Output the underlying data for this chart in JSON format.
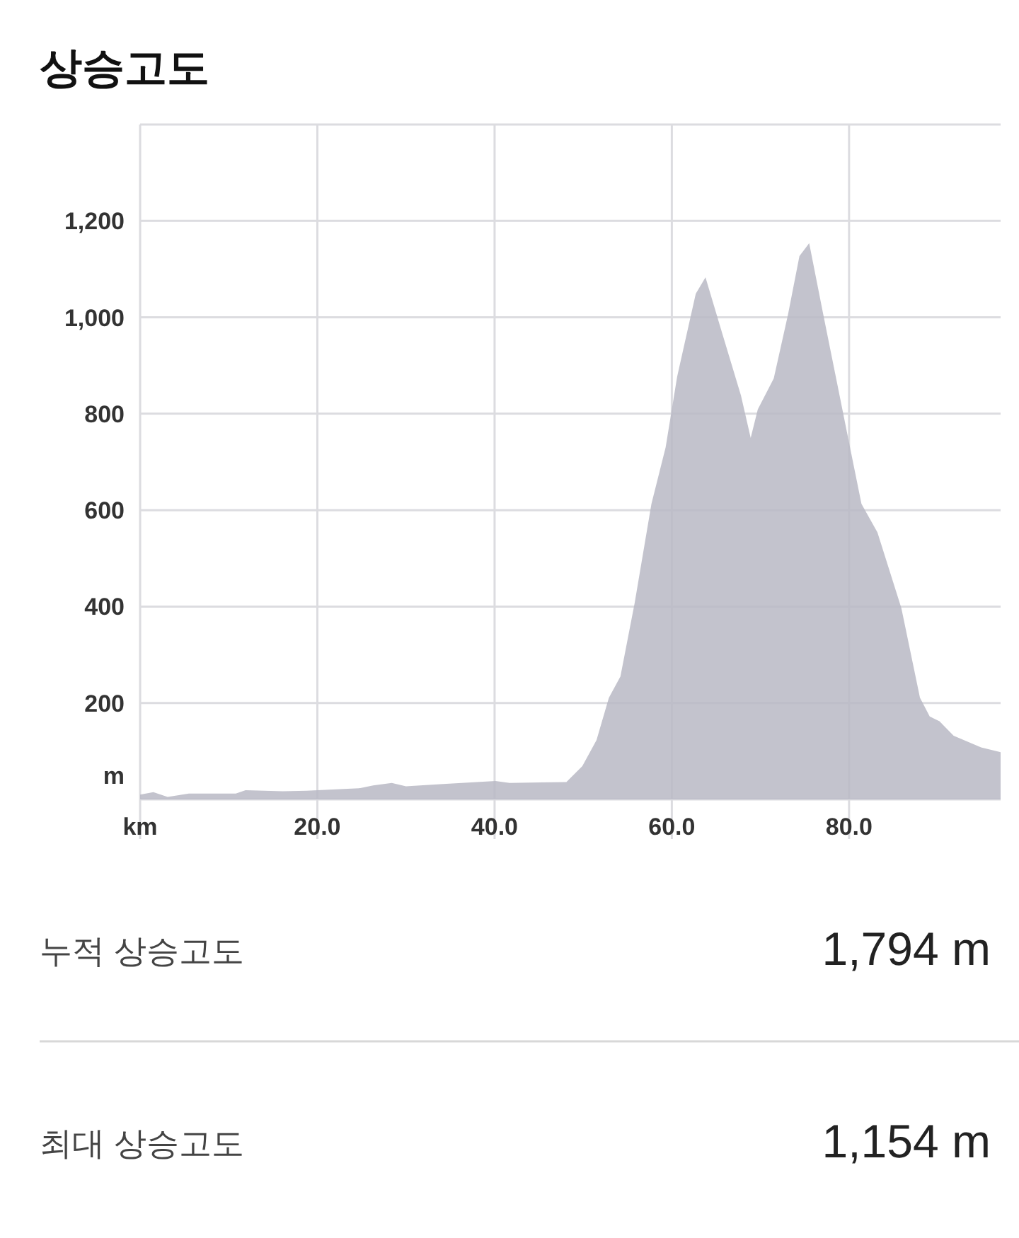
{
  "chart_data": {
    "type": "area",
    "title": "상승고도",
    "ylabel": "m",
    "x": [
      0,
      1.5,
      3.1,
      5.5,
      10.8,
      11.9,
      16.1,
      18.8,
      24.7,
      26.3,
      28.4,
      30.0,
      34.2,
      40.1,
      41.7,
      48.1,
      49.9,
      51.5,
      52.9,
      54.2,
      55.8,
      57.7,
      59.3,
      60.6,
      62.7,
      63.8,
      65.7,
      67.8,
      68.9,
      69.7,
      71.5,
      73.1,
      74.4,
      75.5,
      77.1,
      80.0,
      81.4,
      83.2,
      85.9,
      88.0,
      89.1,
      90.2,
      91.8,
      94.9,
      97.1
    ],
    "series": [
      {
        "color": "#b8b8c4",
        "values": [
          10,
          15,
          5,
          12,
          12,
          19,
          17,
          18,
          23,
          29,
          34,
          27,
          32,
          38,
          34,
          36,
          69,
          123,
          211,
          255,
          407,
          613,
          730,
          877,
          1049,
          1083,
          966,
          838,
          750,
          809,
          873,
          1005,
          1127,
          1154,
          1005,
          740,
          613,
          554,
          397,
          211,
          172,
          162,
          132,
          108,
          98
        ]
      }
    ],
    "xlim": [
      0,
      97.1
    ],
    "ylim": [
      0,
      1400
    ],
    "xticks": [
      {
        "value": 0,
        "label": "km"
      },
      {
        "value": 20,
        "label": "20.0"
      },
      {
        "value": 40,
        "label": "40.0"
      },
      {
        "value": 60,
        "label": "60.0"
      },
      {
        "value": 80,
        "label": "80.0"
      }
    ],
    "yticks": [
      {
        "value": 0,
        "label": null
      },
      {
        "value": 200,
        "label": "200"
      },
      {
        "value": 400,
        "label": "400"
      },
      {
        "value": 600,
        "label": "600"
      },
      {
        "value": 800,
        "label": "800"
      },
      {
        "value": 1000,
        "label": "1,000"
      },
      {
        "value": 1200,
        "label": "1,200"
      },
      {
        "value": 1400,
        "label": null
      }
    ],
    "grid": true,
    "annotations": [
      "누적 상승고도",
      "1,794 m",
      "최대 상승고도",
      "1,154 m"
    ]
  }
}
